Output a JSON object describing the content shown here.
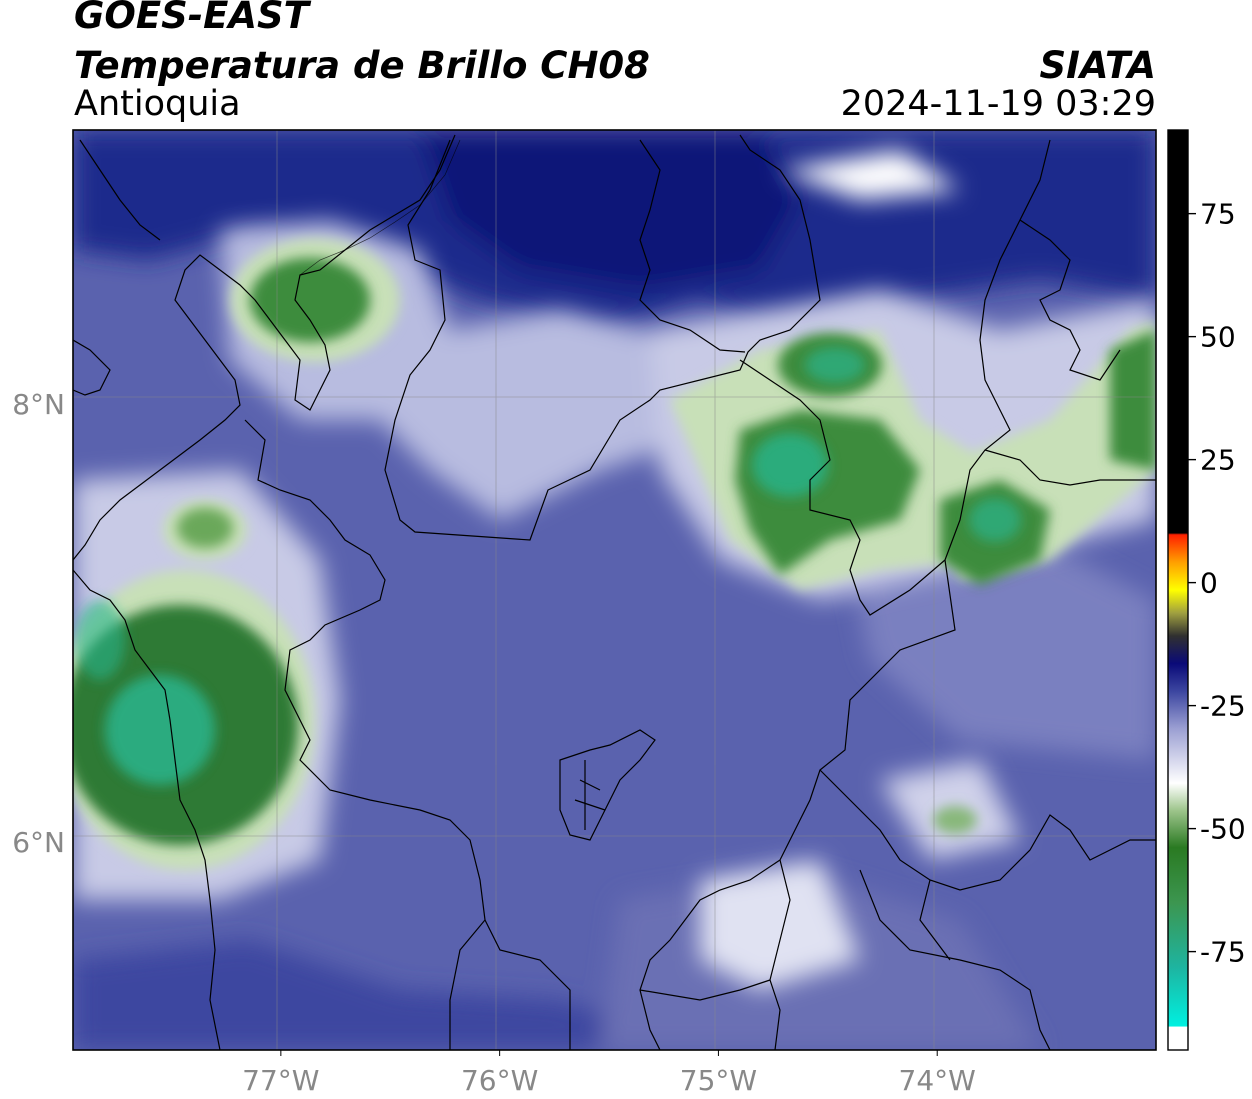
{
  "header": {
    "satellite": "GOES-EAST",
    "product": "Temperatura de Brillo CH08",
    "region": "Antioquia",
    "organization": "SIATA",
    "datetime": "2024-11-19 03:29"
  },
  "map": {
    "lon_range": [
      -77.95,
      -73.0
    ],
    "lat_range": [
      5.05,
      9.25
    ],
    "lon_ticks": [
      {
        "value": -77,
        "label": "77°W"
      },
      {
        "value": -76,
        "label": "76°W"
      },
      {
        "value": -75,
        "label": "75°W"
      },
      {
        "value": -74,
        "label": "74°W"
      }
    ],
    "lat_ticks": [
      {
        "value": 8,
        "label": "8°N"
      },
      {
        "value": 6,
        "label": "6°N"
      }
    ],
    "colors": {
      "deep_navy": "#0a1478",
      "navy": "#1e2a8c",
      "mid_blue": "#4a55a8",
      "slate_blue": "#6a70b4",
      "light_lavender": "#c8cae6",
      "white": "#ffffff",
      "pale_green": "#c8e0b8",
      "green": "#3c8c3c",
      "dark_green": "#287a32",
      "teal": "#28b48c"
    }
  },
  "colorbar": {
    "range": [
      -95,
      92
    ],
    "ticks": [
      {
        "value": 75,
        "label": "75"
      },
      {
        "value": 50,
        "label": "50"
      },
      {
        "value": 25,
        "label": "25"
      },
      {
        "value": 0,
        "label": "0"
      },
      {
        "value": -25,
        "label": "-25"
      },
      {
        "value": -50,
        "label": "-50"
      },
      {
        "value": -75,
        "label": "-75"
      }
    ]
  }
}
